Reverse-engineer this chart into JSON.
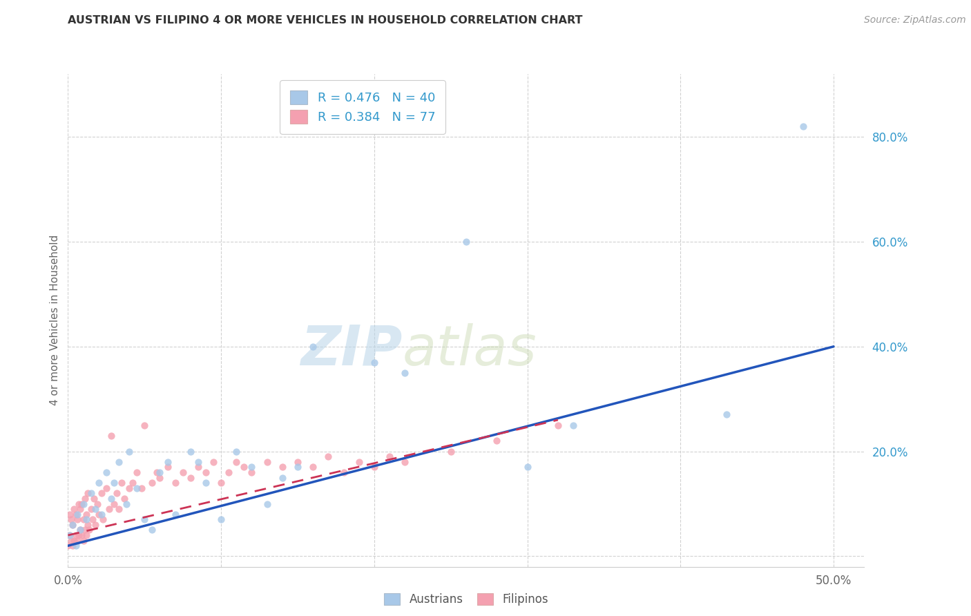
{
  "title": "AUSTRIAN VS FILIPINO 4 OR MORE VEHICLES IN HOUSEHOLD CORRELATION CHART",
  "source": "Source: ZipAtlas.com",
  "ylabel": "4 or more Vehicles in Household",
  "xlim": [
    0.0,
    0.52
  ],
  "ylim": [
    -0.02,
    0.92
  ],
  "xticks": [
    0.0,
    0.1,
    0.2,
    0.3,
    0.4,
    0.5
  ],
  "yticks": [
    0.0,
    0.2,
    0.4,
    0.6,
    0.8
  ],
  "ytick_labels": [
    "",
    "20.0%",
    "40.0%",
    "60.0%",
    "80.0%"
  ],
  "xtick_labels": [
    "0.0%",
    "",
    "",
    "",
    "",
    "50.0%"
  ],
  "R_austrians": 0.476,
  "N_austrians": 40,
  "R_filipinos": 0.384,
  "N_filipinos": 77,
  "color_austrians": "#A8C8E8",
  "color_filipinos": "#F4A0B0",
  "line_color_austrians": "#2255BB",
  "line_color_filipinos": "#CC3355",
  "background_color": "#FFFFFF",
  "grid_color": "#CCCCCC",
  "austrians_x": [
    0.001,
    0.003,
    0.005,
    0.006,
    0.008,
    0.01,
    0.012,
    0.015,
    0.018,
    0.02,
    0.022,
    0.025,
    0.028,
    0.03,
    0.033,
    0.038,
    0.04,
    0.045,
    0.05,
    0.055,
    0.06,
    0.065,
    0.07,
    0.08,
    0.085,
    0.09,
    0.1,
    0.11,
    0.12,
    0.13,
    0.14,
    0.15,
    0.16,
    0.2,
    0.22,
    0.26,
    0.3,
    0.33,
    0.43,
    0.48
  ],
  "austrians_y": [
    0.04,
    0.06,
    0.02,
    0.08,
    0.05,
    0.1,
    0.07,
    0.12,
    0.09,
    0.14,
    0.08,
    0.16,
    0.11,
    0.14,
    0.18,
    0.1,
    0.2,
    0.13,
    0.07,
    0.05,
    0.16,
    0.18,
    0.08,
    0.2,
    0.18,
    0.14,
    0.07,
    0.2,
    0.17,
    0.1,
    0.15,
    0.17,
    0.4,
    0.37,
    0.35,
    0.6,
    0.17,
    0.25,
    0.27,
    0.82
  ],
  "filipinos_x": [
    0.0,
    0.001,
    0.001,
    0.002,
    0.002,
    0.003,
    0.003,
    0.004,
    0.004,
    0.005,
    0.005,
    0.006,
    0.006,
    0.007,
    0.007,
    0.008,
    0.008,
    0.009,
    0.009,
    0.01,
    0.01,
    0.011,
    0.011,
    0.012,
    0.012,
    0.013,
    0.013,
    0.014,
    0.015,
    0.016,
    0.017,
    0.018,
    0.019,
    0.02,
    0.022,
    0.023,
    0.025,
    0.027,
    0.028,
    0.03,
    0.032,
    0.033,
    0.035,
    0.037,
    0.04,
    0.042,
    0.045,
    0.048,
    0.05,
    0.055,
    0.058,
    0.06,
    0.065,
    0.07,
    0.075,
    0.08,
    0.085,
    0.09,
    0.095,
    0.1,
    0.105,
    0.11,
    0.115,
    0.12,
    0.13,
    0.14,
    0.15,
    0.16,
    0.17,
    0.18,
    0.19,
    0.2,
    0.21,
    0.22,
    0.25,
    0.28,
    0.32
  ],
  "filipinos_y": [
    0.02,
    0.04,
    0.08,
    0.03,
    0.07,
    0.02,
    0.06,
    0.03,
    0.09,
    0.04,
    0.08,
    0.03,
    0.07,
    0.04,
    0.1,
    0.05,
    0.09,
    0.04,
    0.1,
    0.03,
    0.07,
    0.05,
    0.11,
    0.04,
    0.08,
    0.06,
    0.12,
    0.05,
    0.09,
    0.07,
    0.11,
    0.06,
    0.1,
    0.08,
    0.12,
    0.07,
    0.13,
    0.09,
    0.23,
    0.1,
    0.12,
    0.09,
    0.14,
    0.11,
    0.13,
    0.14,
    0.16,
    0.13,
    0.25,
    0.14,
    0.16,
    0.15,
    0.17,
    0.14,
    0.16,
    0.15,
    0.17,
    0.16,
    0.18,
    0.14,
    0.16,
    0.18,
    0.17,
    0.16,
    0.18,
    0.17,
    0.18,
    0.17,
    0.19,
    0.16,
    0.18,
    0.17,
    0.19,
    0.18,
    0.2,
    0.22,
    0.25
  ],
  "austrian_line_x": [
    0.0,
    0.5
  ],
  "austrian_line_y": [
    0.02,
    0.4
  ],
  "filipino_line_x": [
    0.0,
    0.32
  ],
  "filipino_line_y": [
    0.04,
    0.26
  ]
}
